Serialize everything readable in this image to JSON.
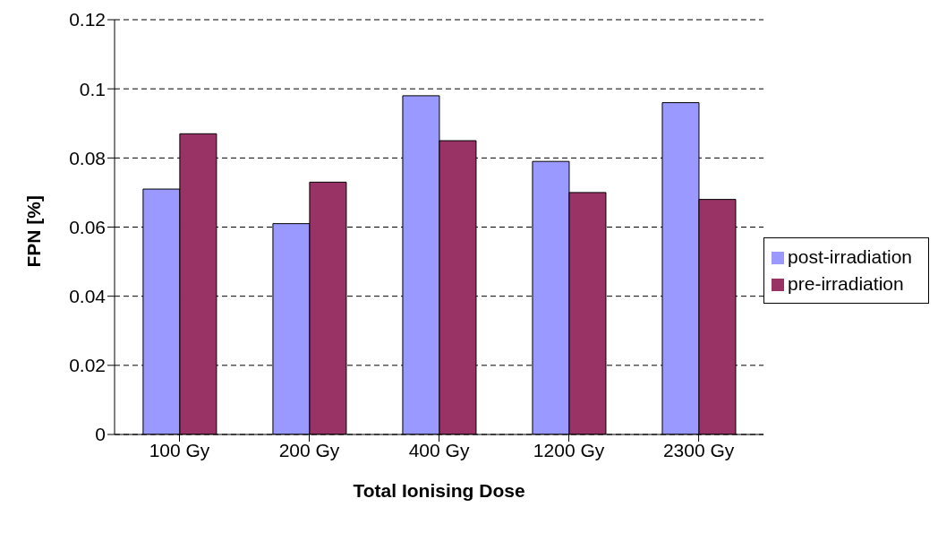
{
  "chart_data": {
    "type": "bar",
    "xlabel": "Total Ionising Dose",
    "ylabel": "FPN [%]",
    "categories": [
      "100 Gy",
      "200 Gy",
      "400 Gy",
      "1200 Gy",
      "2300 Gy"
    ],
    "series": [
      {
        "name": "post-irradiation",
        "color": "#9999ff",
        "values": [
          0.071,
          0.061,
          0.098,
          0.079,
          0.096
        ]
      },
      {
        "name": "pre-irradiation",
        "color": "#993366",
        "values": [
          0.087,
          0.073,
          0.085,
          0.07,
          0.068
        ]
      }
    ],
    "ylim": [
      0,
      0.12
    ],
    "yticks": [
      0,
      0.02,
      0.04,
      0.06,
      0.08,
      0.1,
      0.12
    ],
    "grid": "y",
    "legend": "right"
  }
}
